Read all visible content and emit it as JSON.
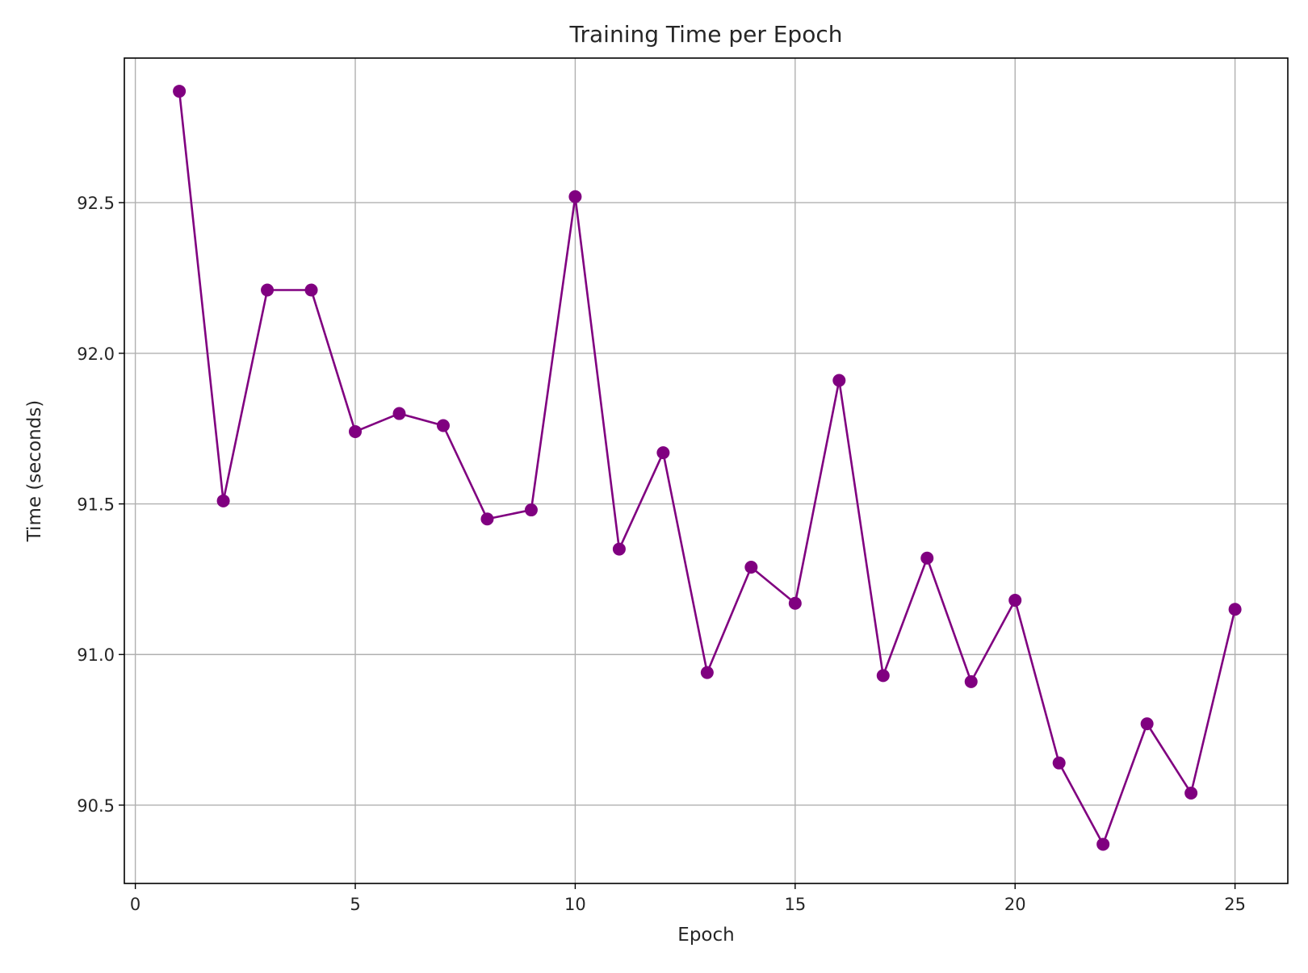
{
  "chart_data": {
    "type": "line",
    "title": "Training Time per Epoch",
    "xlabel": "Epoch",
    "ylabel": "Time (seconds)",
    "xlim": [
      -0.25,
      26.2
    ],
    "ylim": [
      90.24,
      92.98
    ],
    "xticks": [
      0,
      5,
      10,
      15,
      20,
      25
    ],
    "xtick_labels": [
      "0",
      "5",
      "10",
      "15",
      "20",
      "25"
    ],
    "yticks": [
      90.5,
      91.0,
      91.5,
      92.0,
      92.5
    ],
    "ytick_labels": [
      "90.5",
      "91.0",
      "91.5",
      "92.0",
      "92.5"
    ],
    "grid": true,
    "legend": "none",
    "series": [
      {
        "color": "#800080",
        "marker": "circle",
        "x": [
          1,
          2,
          3,
          4,
          5,
          6,
          7,
          8,
          9,
          10,
          11,
          12,
          13,
          14,
          15,
          16,
          17,
          18,
          19,
          20,
          21,
          22,
          23,
          24,
          25
        ],
        "y": [
          92.87,
          91.51,
          92.21,
          92.21,
          91.74,
          91.8,
          91.76,
          91.45,
          91.48,
          92.52,
          91.35,
          91.67,
          90.94,
          91.29,
          91.17,
          91.91,
          90.93,
          91.32,
          90.91,
          91.18,
          90.64,
          90.37,
          90.77,
          90.54,
          91.15
        ]
      }
    ]
  }
}
